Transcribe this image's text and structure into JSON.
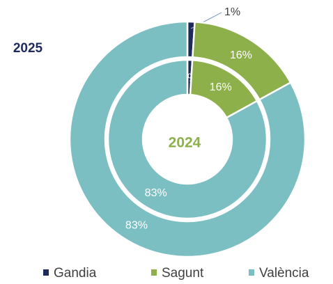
{
  "chart_data": {
    "type": "donut",
    "categories": [
      "Gandia",
      "Sagunt",
      "València"
    ],
    "colors": [
      "#1f2a5c",
      "#8db04a",
      "#7bbfc3"
    ],
    "rings": [
      {
        "name": "2025",
        "values": [
          1,
          16,
          83
        ],
        "value_labels": [
          "1%",
          "16%",
          "83%"
        ]
      },
      {
        "name": "2024",
        "values": [
          1,
          16,
          83
        ],
        "value_labels": [
          "1%",
          "16%",
          "83%"
        ]
      }
    ],
    "legend": "bottom"
  }
}
